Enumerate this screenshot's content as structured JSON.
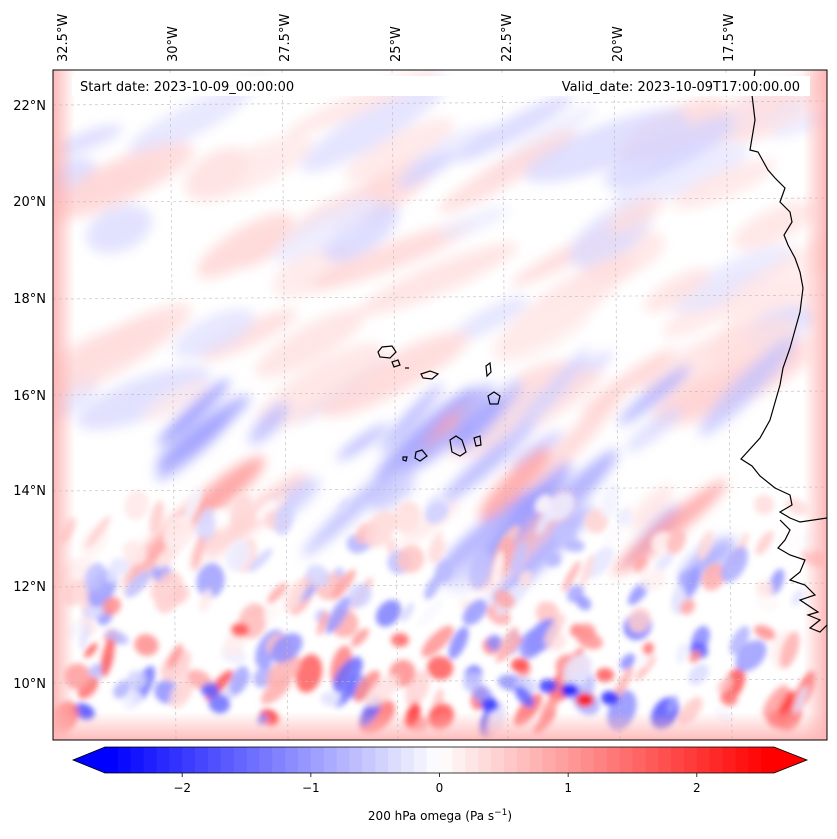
{
  "map": {
    "start_label": "Start date: 2023-10-09_00:00:00",
    "valid_label": "Valid_date: 2023-10-09T17:00:00.00",
    "lon_labels": [
      "32.5°W",
      "30°W",
      "27.5°W",
      "25°W",
      "22.5°W",
      "20°W",
      "17.5°W"
    ],
    "lat_labels": [
      "22°N",
      "20°N",
      "18°N",
      "16°N",
      "14°N",
      "12°N",
      "10°N"
    ],
    "colorbar": {
      "title": "200 hPa omega (Pa s",
      "title_sup": "−1",
      "title_close": ")",
      "ticks": [
        "−2",
        "−1",
        "0",
        "1",
        "2"
      ],
      "tick_values": [
        -2,
        -1,
        0,
        1,
        2
      ],
      "range": [
        -2.6,
        2.6
      ],
      "colormap": "bwr",
      "extend": "both"
    },
    "colors": {
      "negative": "#0000ff",
      "neutral": "#ffffff",
      "positive": "#ff0000",
      "coast": "#000000"
    }
  }
}
